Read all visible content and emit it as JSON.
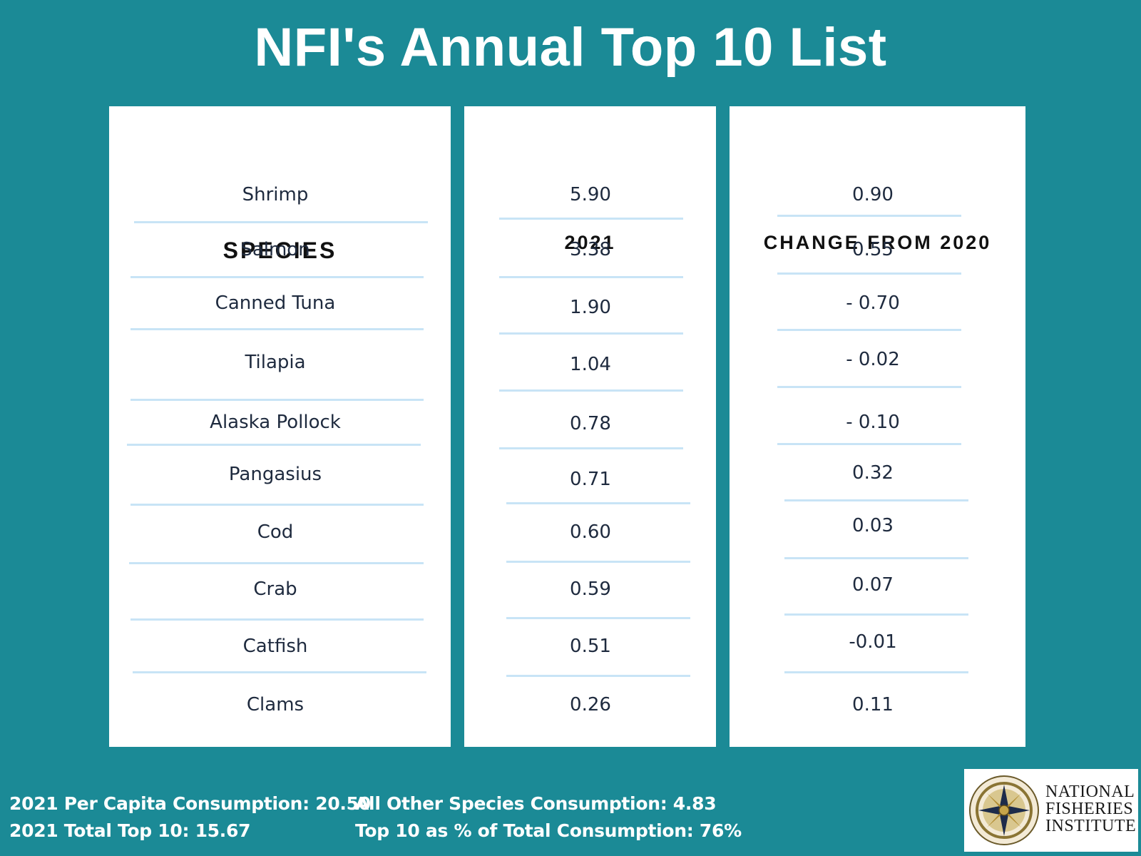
{
  "title": "NFI's Annual Top 10 List",
  "chart_data": {
    "type": "table",
    "title": "NFI's Annual Top 10 List",
    "columns": [
      "SPECIES",
      "2021",
      "CHANGE FROM 2020"
    ],
    "rows": [
      {
        "species": "Shrimp",
        "value_2021": "5.90",
        "change": "0.90"
      },
      {
        "species": "Salmon",
        "value_2021": "3.38",
        "change": "0.55"
      },
      {
        "species": "Canned Tuna",
        "value_2021": "1.90",
        "change": "- 0.70"
      },
      {
        "species": "Tilapia",
        "value_2021": "1.04",
        "change": "- 0.02"
      },
      {
        "species": "Alaska Pollock",
        "value_2021": "0.78",
        "change": "- 0.10"
      },
      {
        "species": "Pangasius",
        "value_2021": "0.71",
        "change": "0.32"
      },
      {
        "species": "Cod",
        "value_2021": "0.60",
        "change": "0.03"
      },
      {
        "species": "Crab",
        "value_2021": "0.59",
        "change": "0.07"
      },
      {
        "species": "Catfish",
        "value_2021": "0.51",
        "change": "-0.01"
      },
      {
        "species": "Clams",
        "value_2021": "0.26",
        "change": "0.11"
      }
    ]
  },
  "footer": {
    "per_capita": "2021  Per Capita Consumption: 20.50",
    "total_top10": "2021 Total Top 10: 15.67",
    "other_species": "All Other Species Consumption: 4.83",
    "top10_pct": "Top 10 as % of Total Consumption: 76%"
  },
  "logo": {
    "line1": "NATIONAL",
    "line2": "FISHERIES",
    "line3": "INSTITUTE"
  },
  "colors": {
    "background": "#1b8a96",
    "panel": "#ffffff",
    "rule": "#c8e4f6",
    "text": "#1e2a3e"
  }
}
